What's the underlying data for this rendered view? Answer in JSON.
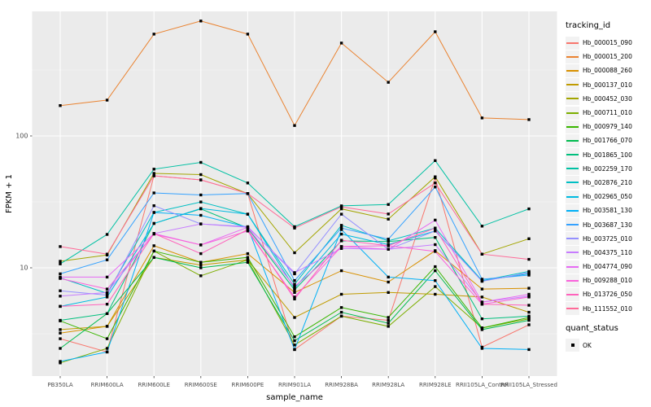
{
  "figure": {
    "background": "#FFFFFF",
    "panel_background": "#EBEBEB",
    "grid_major_color": "#FFFFFF",
    "grid_minor_color": "#F5F5F5",
    "tick_label_color": "#4D4D4D",
    "axis_title_color": "#000000",
    "point_color": "#000000",
    "legend_key_background": "#F2F2F2"
  },
  "legend": {
    "tracking_title": "tracking_id",
    "quant_title": "quant_status",
    "quant_items": [
      {
        "label": "OK",
        "symbol": "black-square"
      }
    ]
  },
  "chart_data": {
    "type": "line",
    "title": "",
    "xlabel": "sample_name",
    "ylabel": "FPKM + 1",
    "y_scale": "log10",
    "y_tick_labels": [
      "100",
      "10"
    ],
    "y_major_ticks": [
      100,
      10
    ],
    "y_minor_ticks": [
      3.162,
      31.62,
      316.2
    ],
    "ylim": [
      1.45,
      880
    ],
    "grid": true,
    "legend_position": "right",
    "point_shape": "filled-square",
    "x_categories": [
      "PB350LA",
      "RRIM600LA",
      "RRIM600LE",
      "RRIM600SE",
      "RRIM600PE",
      "RRIM901LA",
      "RRIM928BA",
      "RRIM928LA",
      "RRIM928LE",
      "RRII105LA_Control",
      "RRII105LA_Stressed"
    ],
    "series": [
      {
        "name": "Hb_000015_090",
        "color": "#F8766D",
        "values": [
          2.9,
          2.3,
          49.8,
          46.4,
          36.6,
          2.4,
          4.3,
          4.0,
          48.0,
          2.5,
          3.7
        ]
      },
      {
        "name": "Hb_000015_200",
        "color": "#EA8331",
        "values": [
          170,
          187,
          592,
          744,
          592,
          120,
          506,
          255,
          617,
          137,
          133
        ]
      },
      {
        "name": "Hb_000088_260",
        "color": "#D89000",
        "values": [
          3.2,
          3.6,
          14.7,
          11.0,
          12.8,
          6.5,
          9.5,
          7.8,
          13.5,
          6.9,
          7.0
        ]
      },
      {
        "name": "Hb_000137_010",
        "color": "#C09B00",
        "values": [
          3.4,
          3.6,
          12.0,
          10.5,
          11.5,
          4.2,
          6.3,
          6.5,
          6.3,
          6.0,
          4.6
        ]
      },
      {
        "name": "Hb_000452_030",
        "color": "#A3A500",
        "values": [
          11.2,
          12.5,
          52.0,
          50.9,
          36.5,
          13.0,
          28.0,
          23.4,
          49.0,
          12.7,
          16.6
        ]
      },
      {
        "name": "Hb_000711_010",
        "color": "#7CAE00",
        "values": [
          1.9,
          2.45,
          13.4,
          8.7,
          11.5,
          2.6,
          4.3,
          3.6,
          7.2,
          3.5,
          4.1
        ]
      },
      {
        "name": "Hb_000979_140",
        "color": "#39B600",
        "values": [
          3.96,
          2.9,
          13.4,
          11.0,
          12.0,
          3.0,
          5.0,
          4.2,
          10.2,
          3.5,
          4.2
        ]
      },
      {
        "name": "Hb_001766_070",
        "color": "#00BB4E",
        "values": [
          2.45,
          4.5,
          12.0,
          10.0,
          11.0,
          2.8,
          4.6,
          3.8,
          9.5,
          3.4,
          4.0
        ]
      },
      {
        "name": "Hb_001865_100",
        "color": "#00BF7D",
        "values": [
          4.0,
          4.5,
          21.7,
          28.0,
          20.0,
          6.8,
          16.0,
          15.8,
          17.0,
          4.1,
          4.3
        ]
      },
      {
        "name": "Hb_002259_170",
        "color": "#00C1A3",
        "values": [
          10.7,
          17.9,
          56.0,
          63.0,
          44.0,
          20.5,
          29.5,
          30.2,
          65.0,
          20.7,
          28.0
        ]
      },
      {
        "name": "Hb_002876_210",
        "color": "#00BFC4",
        "values": [
          8.4,
          6.4,
          26.3,
          31.6,
          25.5,
          7.5,
          21.0,
          16.0,
          20.0,
          8.0,
          9.4
        ]
      },
      {
        "name": "Hb_002965_050",
        "color": "#00BAE0",
        "values": [
          5.1,
          6.0,
          21.7,
          28.2,
          25.5,
          7.0,
          18.0,
          15.0,
          19.0,
          8.0,
          9.0
        ]
      },
      {
        "name": "Hb_003581_130",
        "color": "#00B0F6",
        "values": [
          1.95,
          2.3,
          26.3,
          25.0,
          20.3,
          2.4,
          19.5,
          8.5,
          8.0,
          2.45,
          2.4
        ]
      },
      {
        "name": "Hb_003687_130",
        "color": "#35A2FF",
        "values": [
          9.0,
          11.5,
          37.0,
          35.7,
          36.6,
          8.0,
          20.0,
          16.5,
          41.0,
          8.2,
          8.8
        ]
      },
      {
        "name": "Hb_003725_010",
        "color": "#9590FF",
        "values": [
          6.7,
          6.2,
          29.6,
          21.5,
          20.5,
          9.0,
          25.5,
          13.8,
          19.0,
          7.9,
          9.2
        ]
      },
      {
        "name": "Hb_004375_110",
        "color": "#C77CFF",
        "values": [
          6.1,
          6.5,
          18.2,
          21.5,
          20.3,
          9.2,
          14.0,
          13.8,
          15.0,
          5.5,
          6.1
        ]
      },
      {
        "name": "Hb_004774_090",
        "color": "#E76BF3",
        "values": [
          8.5,
          8.5,
          18.2,
          14.9,
          20.3,
          7.2,
          14.5,
          13.8,
          23.0,
          5.5,
          6.3
        ]
      },
      {
        "name": "Hb_009288_010",
        "color": "#FA62DB",
        "values": [
          8.3,
          6.9,
          18.0,
          14.9,
          19.0,
          6.0,
          14.5,
          14.7,
          13.3,
          5.3,
          6.0
        ]
      },
      {
        "name": "Hb_013726_050",
        "color": "#FF62BC",
        "values": [
          5.1,
          5.3,
          18.2,
          12.8,
          19.5,
          5.8,
          16.2,
          14.7,
          20.0,
          5.3,
          5.2
        ]
      },
      {
        "name": "Hb_111552_010",
        "color": "#FF6A98",
        "values": [
          14.5,
          12.7,
          49.8,
          46.4,
          36.6,
          20.0,
          29.0,
          25.6,
          44.0,
          12.7,
          11.6
        ]
      }
    ]
  }
}
